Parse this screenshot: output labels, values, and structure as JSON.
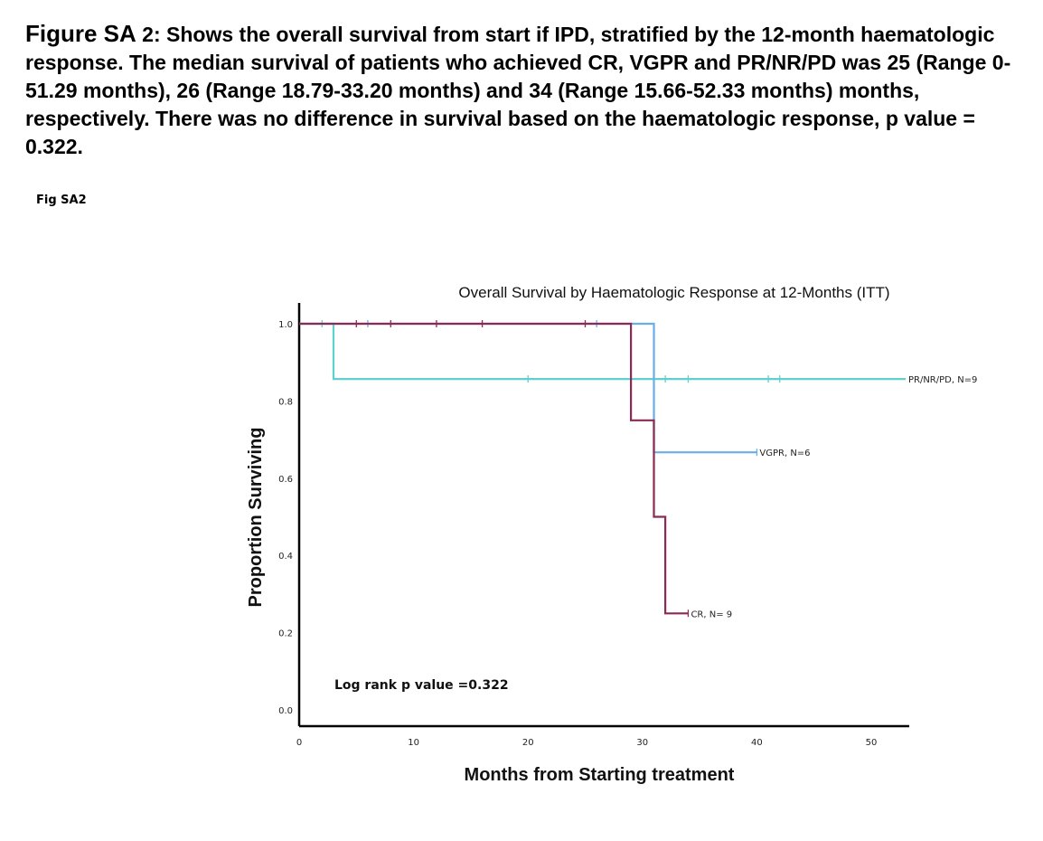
{
  "caption": {
    "lead": "Figure SA",
    "text": " 2: Shows the overall survival from start if IPD, stratified by the 12-month haematologic response. The median survival of patients who achieved CR, VGPR and PR/NR/PD was 25 (Range 0-51.29 months), 26 (Range 18.79-33.20 months) and 34 (Range 15.66-52.33 months) months, respectively. There was no difference in survival based on the haematologic response, p value = 0.322."
  },
  "fig_label": "Fig SA2",
  "chart_data": {
    "type": "line",
    "title": "Overall Survival by Haematologic Response at 12-Months (ITT)",
    "xlabel": "Months from Starting treatment",
    "ylabel": "Proportion Surviving",
    "xlim": [
      0,
      53
    ],
    "ylim": [
      0,
      1.0
    ],
    "xticks": [
      "0",
      "10",
      "20",
      "30",
      "40",
      "50"
    ],
    "xtick_values": [
      0,
      10,
      20,
      30,
      40,
      50
    ],
    "yticks": [
      "0.0",
      "0.2",
      "0.4",
      "0.6",
      "0.8",
      "1.0"
    ],
    "ytick_values": [
      0,
      0.2,
      0.4,
      0.6,
      0.8,
      1.0
    ],
    "grid": false,
    "annotation": "Log rank p value =0.322",
    "series": [
      {
        "name": "PR/NR/PD, N=9",
        "color": "#5fd0cc",
        "step": [
          [
            0,
            1.0
          ],
          [
            3,
            1.0
          ],
          [
            3,
            0.857
          ],
          [
            53,
            0.857
          ]
        ],
        "censored": [
          [
            2,
            1.0
          ],
          [
            20,
            0.857
          ],
          [
            32,
            0.857
          ],
          [
            34,
            0.857
          ],
          [
            41,
            0.857
          ],
          [
            42,
            0.857
          ]
        ]
      },
      {
        "name": "VGPR, N=6",
        "color": "#6aaee8",
        "step": [
          [
            0,
            1.0
          ],
          [
            31,
            1.0
          ],
          [
            31,
            0.667
          ],
          [
            40,
            0.667
          ]
        ],
        "censored": [
          [
            6,
            1.0
          ],
          [
            26,
            1.0
          ],
          [
            40,
            0.667
          ]
        ]
      },
      {
        "name": "CR, N= 9",
        "color": "#8c2a55",
        "step": [
          [
            0,
            1.0
          ],
          [
            29,
            1.0
          ],
          [
            29,
            0.75
          ],
          [
            31,
            0.75
          ],
          [
            31,
            0.5
          ],
          [
            32,
            0.5
          ],
          [
            32,
            0.25
          ],
          [
            34,
            0.25
          ]
        ],
        "censored": [
          [
            5,
            1.0
          ],
          [
            8,
            1.0
          ],
          [
            12,
            1.0
          ],
          [
            16,
            1.0
          ],
          [
            25,
            1.0
          ],
          [
            34,
            0.25
          ]
        ]
      }
    ]
  }
}
